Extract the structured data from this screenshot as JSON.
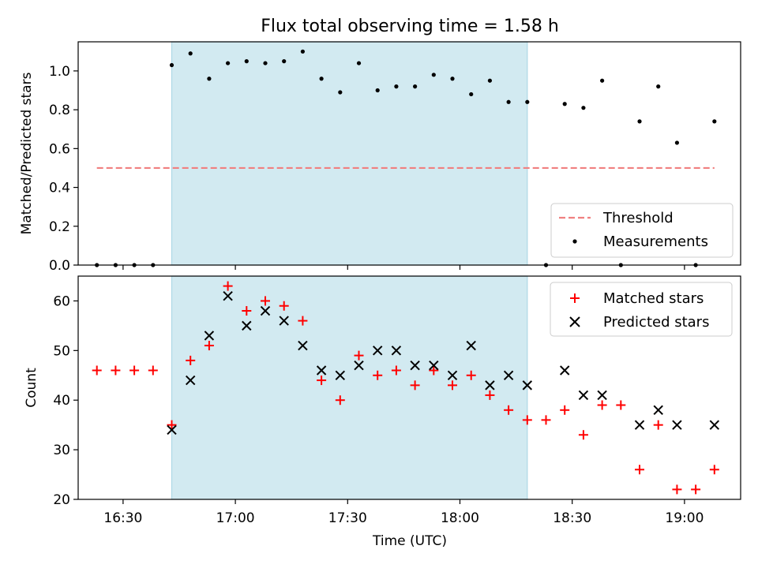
{
  "figure": {
    "title": "Flux total observing time = 1.58 h",
    "xlabel": "Time (UTC)"
  },
  "colors": {
    "shade": "#add8e6",
    "threshold": "#f08080",
    "measurements": "#000000",
    "matched": "#ff0000",
    "predicted": "#000000",
    "axis": "#000000"
  },
  "chart_data": [
    {
      "type": "scatter",
      "ylabel": "Matched/Predicted stars",
      "xlim": [
        "16:18",
        "19:15"
      ],
      "ylim": [
        0,
        1.15
      ],
      "xticks": [
        "16:30",
        "17:00",
        "17:30",
        "18:00",
        "18:30",
        "19:00"
      ],
      "yticks": [
        "0.0",
        "0.2",
        "0.4",
        "0.6",
        "0.8",
        "1.0"
      ],
      "shaded_interval": [
        "16:43",
        "18:18"
      ],
      "legend": {
        "placement": "lower right",
        "entries": [
          "Threshold",
          "Measurements"
        ]
      },
      "threshold": {
        "name": "Threshold",
        "y": 0.5,
        "x": [
          "16:23",
          "19:08"
        ]
      },
      "measurements": {
        "name": "Measurements",
        "x": [
          "16:23",
          "16:28",
          "16:33",
          "16:38",
          "16:43",
          "16:48",
          "16:53",
          "16:58",
          "17:03",
          "17:08",
          "17:13",
          "17:18",
          "17:23",
          "17:28",
          "17:33",
          "17:38",
          "17:43",
          "17:48",
          "17:53",
          "17:58",
          "18:03",
          "18:08",
          "18:13",
          "18:18",
          "18:23",
          "18:28",
          "18:33",
          "18:38",
          "18:43",
          "18:48",
          "18:53",
          "18:58",
          "19:03",
          "19:08"
        ],
        "y": [
          0,
          0,
          0,
          0,
          1.03,
          1.09,
          0.96,
          1.04,
          1.05,
          1.04,
          1.05,
          1.1,
          0.96,
          0.89,
          1.04,
          0.9,
          0.92,
          0.92,
          0.98,
          0.96,
          0.88,
          0.95,
          0.84,
          0.84,
          0,
          0.83,
          0.81,
          0.95,
          0,
          0.74,
          0.92,
          0.63,
          0,
          0.74
        ]
      }
    },
    {
      "type": "scatter",
      "ylabel": "Count",
      "xlim": [
        "16:18",
        "19:15"
      ],
      "ylim": [
        20,
        65
      ],
      "xticks": [
        "16:30",
        "17:00",
        "17:30",
        "18:00",
        "18:30",
        "19:00"
      ],
      "yticks": [
        "20",
        "30",
        "40",
        "50",
        "60"
      ],
      "shaded_interval": [
        "16:43",
        "18:18"
      ],
      "legend": {
        "placement": "upper right",
        "entries": [
          "Matched stars",
          "Predicted stars"
        ]
      },
      "series": [
        {
          "name": "Matched stars",
          "marker": "+",
          "x": [
            "16:23",
            "16:28",
            "16:33",
            "16:38",
            "16:43",
            "16:48",
            "16:53",
            "16:58",
            "17:03",
            "17:08",
            "17:13",
            "17:18",
            "17:23",
            "17:28",
            "17:33",
            "17:38",
            "17:43",
            "17:48",
            "17:53",
            "17:58",
            "18:03",
            "18:08",
            "18:13",
            "18:18",
            "18:23",
            "18:28",
            "18:33",
            "18:38",
            "18:43",
            "18:48",
            "18:53",
            "18:58",
            "19:03",
            "19:08"
          ],
          "values": [
            46,
            46,
            46,
            46,
            35,
            48,
            51,
            63,
            58,
            60,
            59,
            56,
            44,
            40,
            49,
            45,
            46,
            43,
            46,
            43,
            45,
            41,
            38,
            36,
            36,
            38,
            33,
            39,
            39,
            26,
            35,
            22,
            22,
            26
          ]
        },
        {
          "name": "Predicted stars",
          "marker": "x",
          "x": [
            "16:43",
            "16:48",
            "16:53",
            "16:58",
            "17:03",
            "17:08",
            "17:13",
            "17:18",
            "17:23",
            "17:28",
            "17:33",
            "17:38",
            "17:43",
            "17:48",
            "17:53",
            "17:58",
            "18:03",
            "18:08",
            "18:13",
            "18:18",
            "18:28",
            "18:33",
            "18:38",
            "18:48",
            "18:53",
            "18:58",
            "19:08"
          ],
          "values": [
            34,
            44,
            53,
            61,
            55,
            58,
            56,
            51,
            46,
            45,
            47,
            50,
            50,
            47,
            47,
            45,
            51,
            43,
            45,
            43,
            46,
            41,
            41,
            35,
            38,
            35,
            35
          ]
        }
      ]
    }
  ]
}
